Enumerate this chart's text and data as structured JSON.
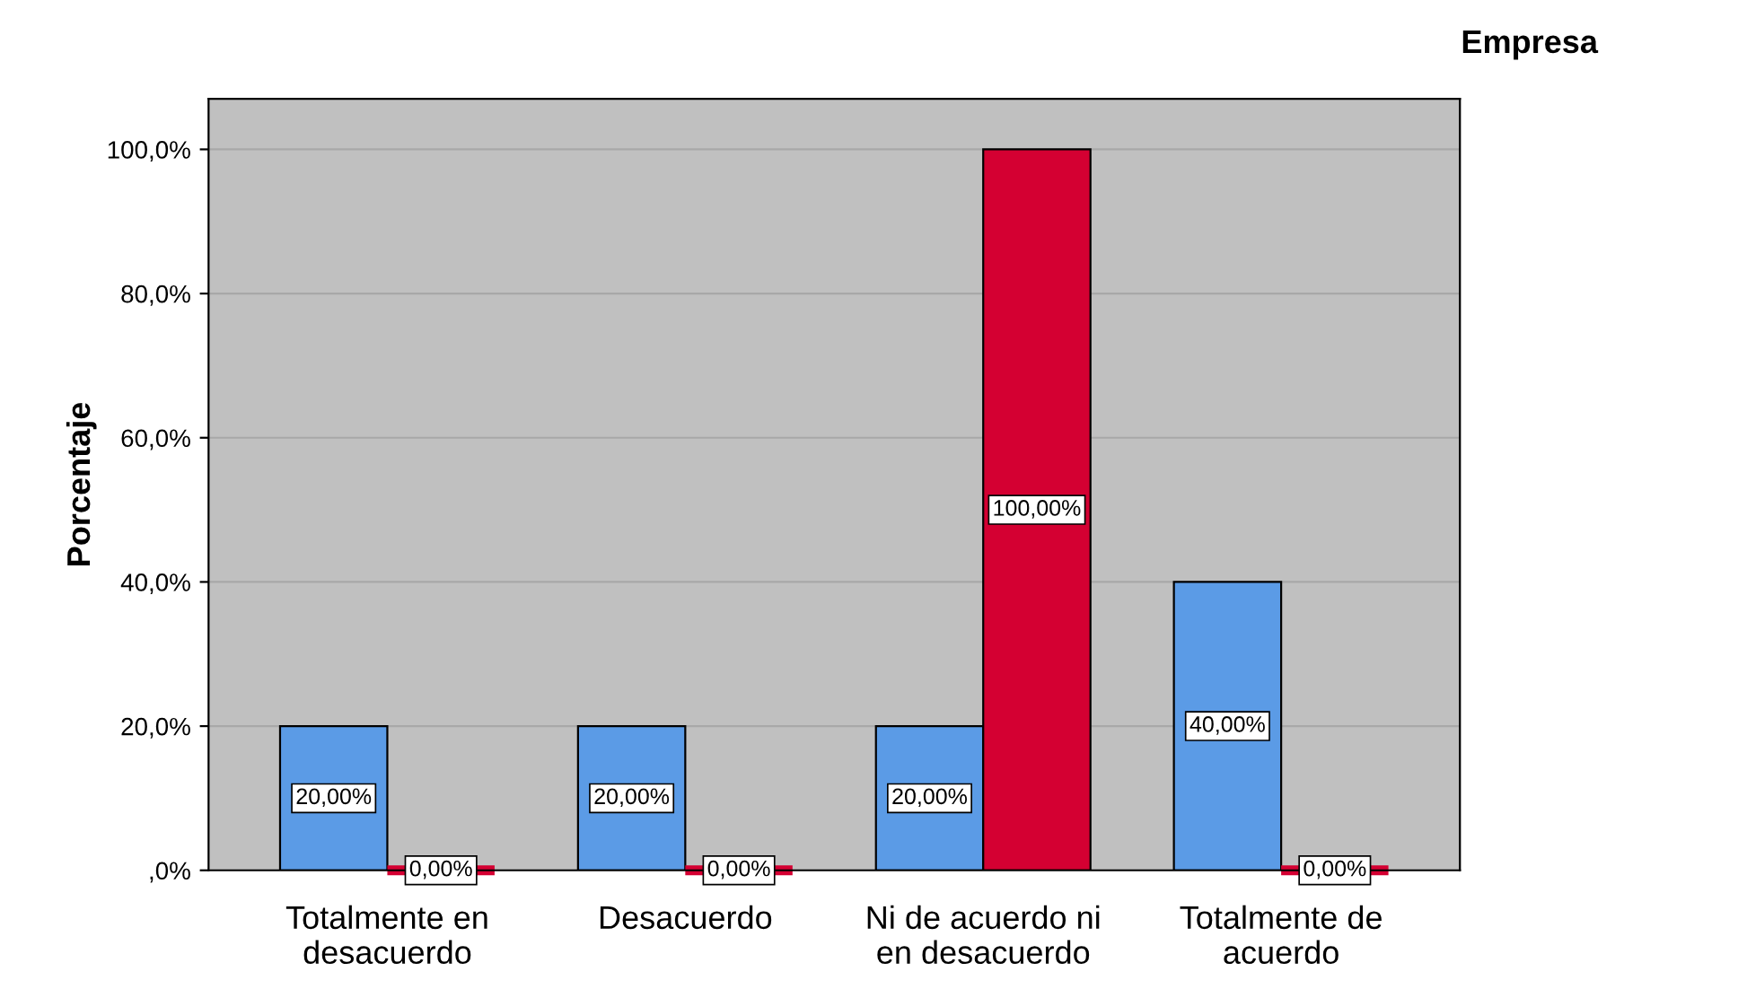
{
  "chart_data": {
    "type": "bar",
    "ylabel": "Porcentaje",
    "legend_title": "Empresa",
    "categories": [
      "Totalmente en\ndesacuerdo",
      "Desacuerdo",
      "Ni de acuerdo ni\nen desacuerdo",
      "Totalmente de\nacuerdo"
    ],
    "series": [
      {
        "color": "#5b9be6",
        "values": [
          20,
          20,
          20,
          40
        ],
        "value_labels": [
          "20,00%",
          "20,00%",
          "20,00%",
          "40,00%"
        ]
      },
      {
        "color": "#d40032",
        "values": [
          0,
          0,
          100,
          0
        ],
        "value_labels": [
          "0,00%",
          "0,00%",
          "100,00%",
          "0,00%"
        ]
      }
    ],
    "ylim": [
      0,
      107
    ],
    "yticks": [
      {
        "value": 0,
        "label": ",0%"
      },
      {
        "value": 20,
        "label": "20,0%"
      },
      {
        "value": 40,
        "label": "40,0%"
      },
      {
        "value": 60,
        "label": "60,0%"
      },
      {
        "value": 80,
        "label": "80,0%"
      },
      {
        "value": 100,
        "label": "100,0%"
      }
    ],
    "grid": "y"
  }
}
